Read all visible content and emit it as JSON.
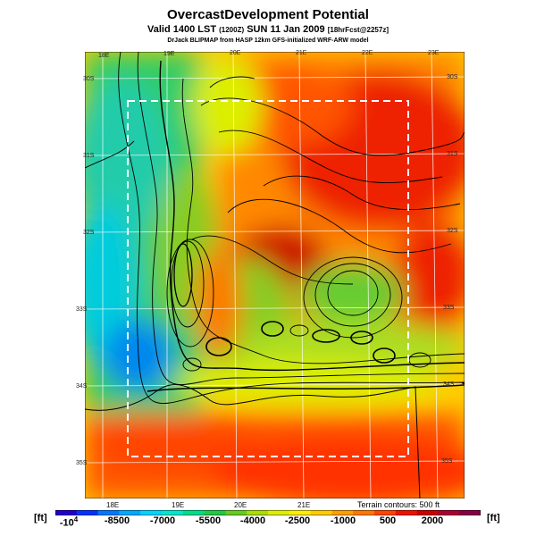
{
  "header": {
    "title": "OvercastDevelopment Potential",
    "valid": "Valid 1400 LST",
    "valid_paren": "(1200Z)",
    "date": "SUN 11 Jan 2009",
    "forecast": "[18hrFcst@2257z]",
    "source": "DrJack BLIPMAP from HASP 12km GFS-initialized WRF-ARW model"
  },
  "map": {
    "top_lon_labels": [
      "18E",
      "19E",
      "20E",
      "21E",
      "22E",
      "23E"
    ],
    "bottom_lon_labels": [
      "18E",
      "19E",
      "20E",
      "21E"
    ],
    "left_lat_labels": [
      "30S",
      "31S",
      "32S",
      "33S",
      "34S",
      "35S"
    ],
    "right_lat_labels": [
      "30S",
      "31S",
      "32S",
      "33S",
      "34S",
      "35S"
    ],
    "terrain_note": "Terrain contours: 500 ft",
    "colors": {
      "grid": "#ffffff",
      "domain_box": "#ffffff",
      "contour": "#000000"
    }
  },
  "colorbar": {
    "unit_left": "[ft]",
    "unit_right": "[ft]",
    "first_label_base": "-10",
    "first_label_exp": "4",
    "labels": [
      "-8500",
      "-7000",
      "-5500",
      "-4000",
      "-2500",
      "-1000",
      "500",
      "2000"
    ],
    "colors": [
      "#2200cc",
      "#0033ff",
      "#0077ff",
      "#00aaff",
      "#00d4ff",
      "#00e8cc",
      "#00dd88",
      "#22c844",
      "#66cc22",
      "#aadd00",
      "#ddee00",
      "#ffee00",
      "#ffcc00",
      "#ffa000",
      "#ff7700",
      "#ff4400",
      "#ee1100",
      "#cc0000",
      "#aa0033",
      "#880044"
    ]
  }
}
